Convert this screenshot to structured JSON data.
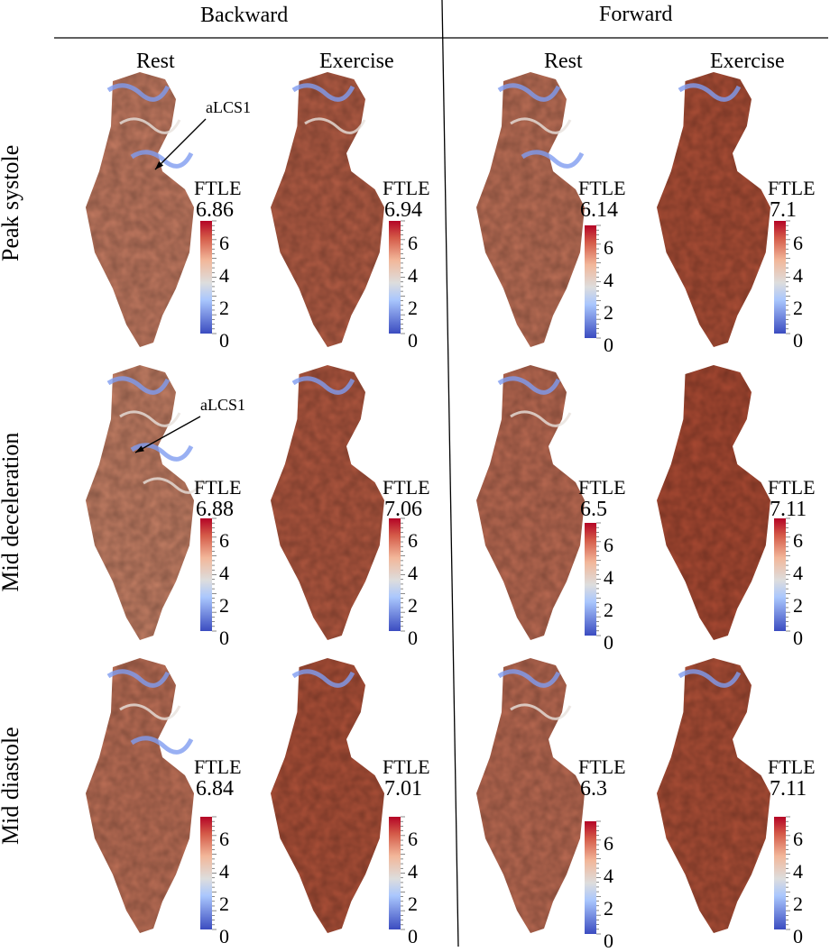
{
  "headers": {
    "backward": "Backward",
    "forward": "Forward"
  },
  "columns": [
    "Rest",
    "Exercise",
    "Rest",
    "Exercise"
  ],
  "rows": [
    "Peak systole",
    "Mid deceleration",
    "Mid diastole"
  ],
  "colorbar": {
    "label": "FTLE",
    "ticks": [
      "6",
      "4",
      "2",
      "0"
    ],
    "low_color": "#3b4cc0",
    "mid_color": "#dddddd",
    "high_color": "#b40426"
  },
  "panels": [
    {
      "id": "ps-back-rest",
      "max": "6.86",
      "redness": 0.45,
      "annotation": "aLCS1"
    },
    {
      "id": "ps-back-ex",
      "max": "6.94",
      "redness": 0.75
    },
    {
      "id": "ps-fwd-rest",
      "max": "6.14",
      "redness": 0.55
    },
    {
      "id": "ps-fwd-ex",
      "max": "7.1",
      "redness": 0.9
    },
    {
      "id": "md-back-rest",
      "max": "6.88",
      "redness": 0.4,
      "annotation": "aLCS1"
    },
    {
      "id": "md-back-ex",
      "max": "7.06",
      "redness": 0.8
    },
    {
      "id": "md-fwd-rest",
      "max": "6.5",
      "redness": 0.6
    },
    {
      "id": "md-fwd-ex",
      "max": "7.11",
      "redness": 0.95
    },
    {
      "id": "mdi-back-rest",
      "max": "6.84",
      "redness": 0.55
    },
    {
      "id": "mdi-back-ex",
      "max": "7.01",
      "redness": 0.88
    },
    {
      "id": "mdi-fwd-rest",
      "max": "6.3",
      "redness": 0.6
    },
    {
      "id": "mdi-fwd-ex",
      "max": "7.11",
      "redness": 0.9
    }
  ]
}
